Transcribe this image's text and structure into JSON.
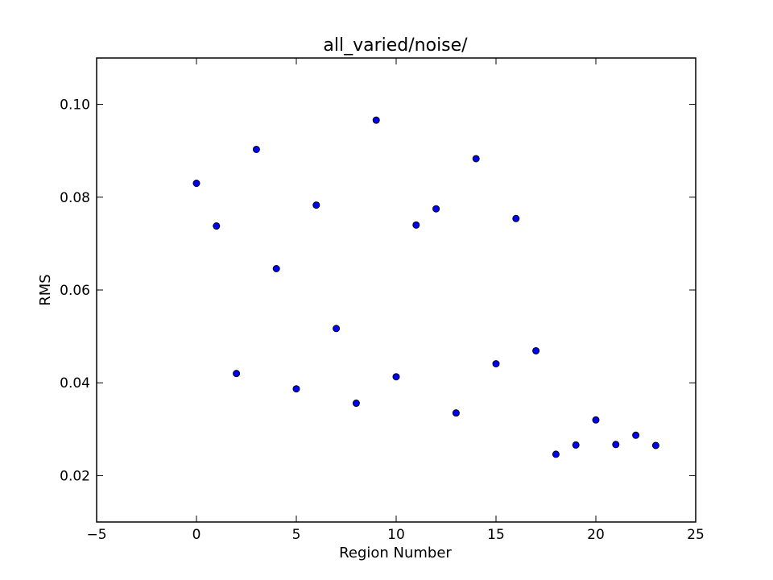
{
  "chart_data": {
    "type": "scatter",
    "title": "all_varied/noise/",
    "xlabel": "Region Number",
    "ylabel": "RMS",
    "xlim": [
      -5,
      25
    ],
    "ylim": [
      0.01,
      0.11
    ],
    "xticks": [
      -5,
      0,
      5,
      10,
      15,
      20,
      25
    ],
    "xtick_labels": [
      "−5",
      "0",
      "5",
      "10",
      "15",
      "20",
      "25"
    ],
    "yticks": [
      0.02,
      0.04,
      0.06,
      0.08,
      0.1
    ],
    "ytick_labels": [
      "0.02",
      "0.04",
      "0.06",
      "0.08",
      "0.10"
    ],
    "grid": false,
    "marker_color": "#0000ff",
    "marker_edge_color": "#000000",
    "points": [
      {
        "x": 0,
        "y": 0.083
      },
      {
        "x": 1,
        "y": 0.0738
      },
      {
        "x": 2,
        "y": 0.042
      },
      {
        "x": 3,
        "y": 0.0903
      },
      {
        "x": 4,
        "y": 0.0646
      },
      {
        "x": 5,
        "y": 0.0387
      },
      {
        "x": 6,
        "y": 0.0783
      },
      {
        "x": 7,
        "y": 0.0517
      },
      {
        "x": 8,
        "y": 0.0356
      },
      {
        "x": 9,
        "y": 0.0966
      },
      {
        "x": 10,
        "y": 0.0413
      },
      {
        "x": 11,
        "y": 0.074
      },
      {
        "x": 12,
        "y": 0.0775
      },
      {
        "x": 13,
        "y": 0.0335
      },
      {
        "x": 14,
        "y": 0.0883
      },
      {
        "x": 15,
        "y": 0.0441
      },
      {
        "x": 16,
        "y": 0.0754
      },
      {
        "x": 17,
        "y": 0.0469
      },
      {
        "x": 18,
        "y": 0.0246
      },
      {
        "x": 19,
        "y": 0.0266
      },
      {
        "x": 20,
        "y": 0.032
      },
      {
        "x": 21,
        "y": 0.0267
      },
      {
        "x": 22,
        "y": 0.0287
      },
      {
        "x": 23,
        "y": 0.0265
      }
    ]
  }
}
